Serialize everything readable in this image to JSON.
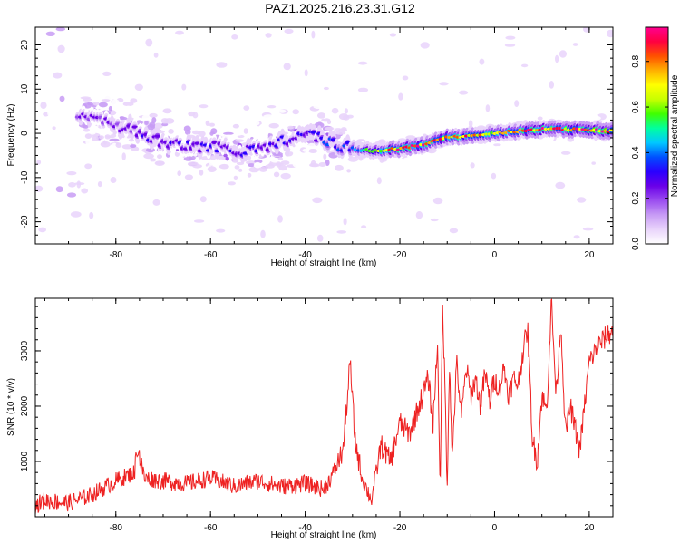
{
  "title": "PAZ1.2025.216.23.31.G12",
  "chart_data": [
    {
      "type": "heatmap",
      "xlabel": "Height of straight line (km)",
      "ylabel": "Frequency (Hz)",
      "xlim": [
        -97,
        25
      ],
      "ylim": [
        -25,
        24
      ],
      "xticks": [
        -80,
        -60,
        -40,
        -20,
        0,
        20
      ],
      "yticks": [
        -20,
        -10,
        0,
        10,
        20
      ],
      "colorbar": {
        "label": "Normalized spectral amplitude",
        "range": [
          0,
          0.95
        ],
        "ticks": [
          0.0,
          0.2,
          0.4,
          0.6,
          0.8
        ],
        "colormap": [
          "#ffffff",
          "#e9d4fb",
          "#c89cf5",
          "#9b4df0",
          "#6a00e8",
          "#2a00ff",
          "#0050ff",
          "#00c8ff",
          "#00ffa0",
          "#40ff00",
          "#c8ff00",
          "#ffff00",
          "#ffb000",
          "#ff5000",
          "#ff0040",
          "#ff0090"
        ]
      },
      "ridge_centerline": {
        "height_km": [
          -85,
          -80,
          -75,
          -70,
          -65,
          -60,
          -55,
          -50,
          -45,
          -40,
          -35,
          -30,
          -25,
          -20,
          -15,
          -10,
          -5,
          0,
          5,
          10,
          15,
          20,
          25
        ],
        "frequency_hz": [
          4,
          2,
          0,
          -2,
          -3,
          -3,
          -4,
          -4,
          -2,
          0,
          -2,
          -3.5,
          -4,
          -3.5,
          -2.5,
          -1,
          -0.5,
          0,
          0.5,
          1,
          1,
          0.7,
          0.5
        ]
      },
      "ridge_peak_amplitude": {
        "height_km": [
          -85,
          -70,
          -55,
          -45,
          -35,
          -28,
          -22,
          -15,
          -8,
          0,
          8,
          15,
          22
        ],
        "amplitude": [
          0.25,
          0.3,
          0.3,
          0.3,
          0.35,
          0.45,
          0.85,
          0.9,
          0.8,
          0.75,
          0.9,
          0.85,
          0.9
        ]
      },
      "grid": false
    },
    {
      "type": "line",
      "xlabel": "Height of straight line (km)",
      "ylabel": "SNR (10 * v/v)",
      "xlim": [
        -97,
        25
      ],
      "ylim": [
        0,
        3950
      ],
      "xticks": [
        -80,
        -60,
        -40,
        -20,
        0,
        20
      ],
      "yticks": [
        1000,
        2000,
        3000
      ],
      "series": [
        {
          "color": "#ee2222",
          "x": [
            -97,
            -95,
            -90,
            -85,
            -80,
            -76,
            -75.5,
            -74,
            -70,
            -65,
            -60,
            -55,
            -50,
            -45,
            -40,
            -36,
            -34,
            -32,
            -30.5,
            -29.5,
            -28,
            -26,
            -24,
            -22,
            -20,
            -18,
            -16,
            -14,
            -13,
            -12,
            -11.5,
            -11,
            -10.5,
            -10,
            -9.5,
            -9,
            -8,
            -7,
            -6,
            -5,
            -4,
            -3,
            -2,
            -1,
            0,
            1,
            2,
            3,
            4,
            5,
            6,
            7,
            8,
            9,
            10,
            11,
            12,
            13,
            14,
            15,
            16,
            18,
            20,
            22,
            24,
            25
          ],
          "y": [
            200,
            300,
            250,
            400,
            650,
            800,
            1300,
            700,
            650,
            600,
            700,
            550,
            650,
            550,
            600,
            500,
            800,
            1200,
            2800,
            1400,
            700,
            300,
            1300,
            1000,
            1700,
            1500,
            2000,
            2500,
            1700,
            3200,
            250,
            3900,
            2400,
            600,
            2900,
            1000,
            2800,
            1800,
            2700,
            2200,
            2500,
            2000,
            2600,
            2100,
            2500,
            2300,
            2700,
            2200,
            2500,
            2400,
            3000,
            3400,
            1400,
            1000,
            2200,
            1900,
            3900,
            2200,
            3500,
            1500,
            2000,
            1200,
            2800,
            3100,
            3300,
            3350
          ],
          "noise": 350
        }
      ],
      "grid": false
    }
  ]
}
